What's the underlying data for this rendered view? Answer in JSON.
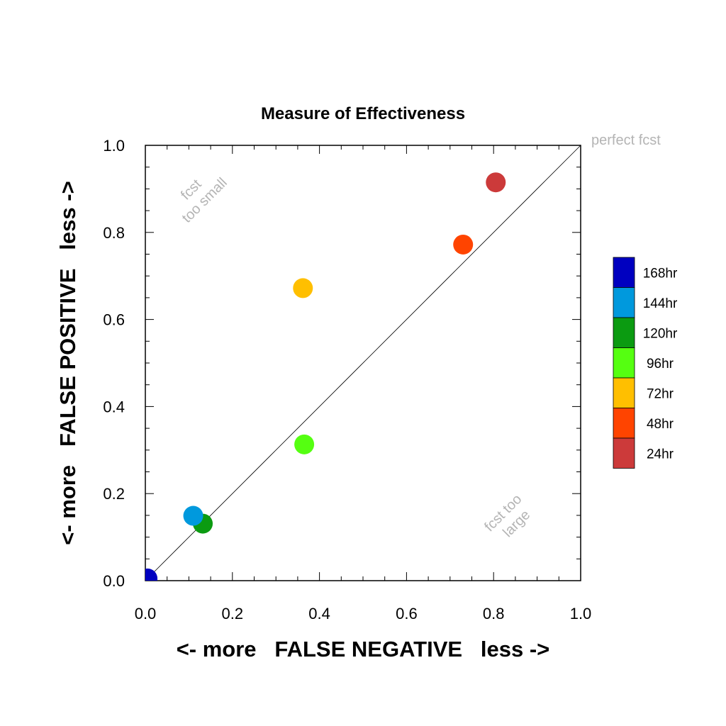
{
  "chart_data": {
    "type": "scatter",
    "title": "Measure of Effectiveness",
    "xlabel": "<- more   FALSE NEGATIVE   less ->",
    "ylabel": "<- more   FALSE POSITIVE   less ->",
    "xlim": [
      0.0,
      1.0
    ],
    "ylim": [
      0.0,
      1.0
    ],
    "xticks": [
      "0.0",
      "0.2",
      "0.4",
      "0.6",
      "0.8",
      "1.0"
    ],
    "yticks": [
      "0.0",
      "0.2",
      "0.4",
      "0.6",
      "0.8",
      "1.0"
    ],
    "grid": false,
    "legend_position": "right",
    "reference_line": {
      "from": [
        0,
        0
      ],
      "to": [
        1,
        1
      ],
      "label": "perfect fcst"
    },
    "annotations": [
      {
        "lines": [
          "fcst",
          "too small"
        ]
      },
      {
        "lines": [
          "fcst too",
          "large"
        ]
      }
    ],
    "series": [
      {
        "name": "24hr",
        "color": "#cc3a3a",
        "x": 0.805,
        "y": 0.915
      },
      {
        "name": "48hr",
        "color": "#ff4400",
        "x": 0.73,
        "y": 0.772
      },
      {
        "name": "72hr",
        "color": "#ffbf00",
        "x": 0.362,
        "y": 0.672
      },
      {
        "name": "96hr",
        "color": "#55ff11",
        "x": 0.365,
        "y": 0.313
      },
      {
        "name": "120hr",
        "color": "#0b9b11",
        "x": 0.132,
        "y": 0.131
      },
      {
        "name": "144hr",
        "color": "#0099dd",
        "x": 0.11,
        "y": 0.149
      },
      {
        "name": "168hr",
        "color": "#0000c0",
        "x": 0.005,
        "y": 0.005
      }
    ],
    "legend_order": [
      "168hr",
      "144hr",
      "120hr",
      "96hr",
      "72hr",
      "48hr",
      "24hr"
    ]
  }
}
